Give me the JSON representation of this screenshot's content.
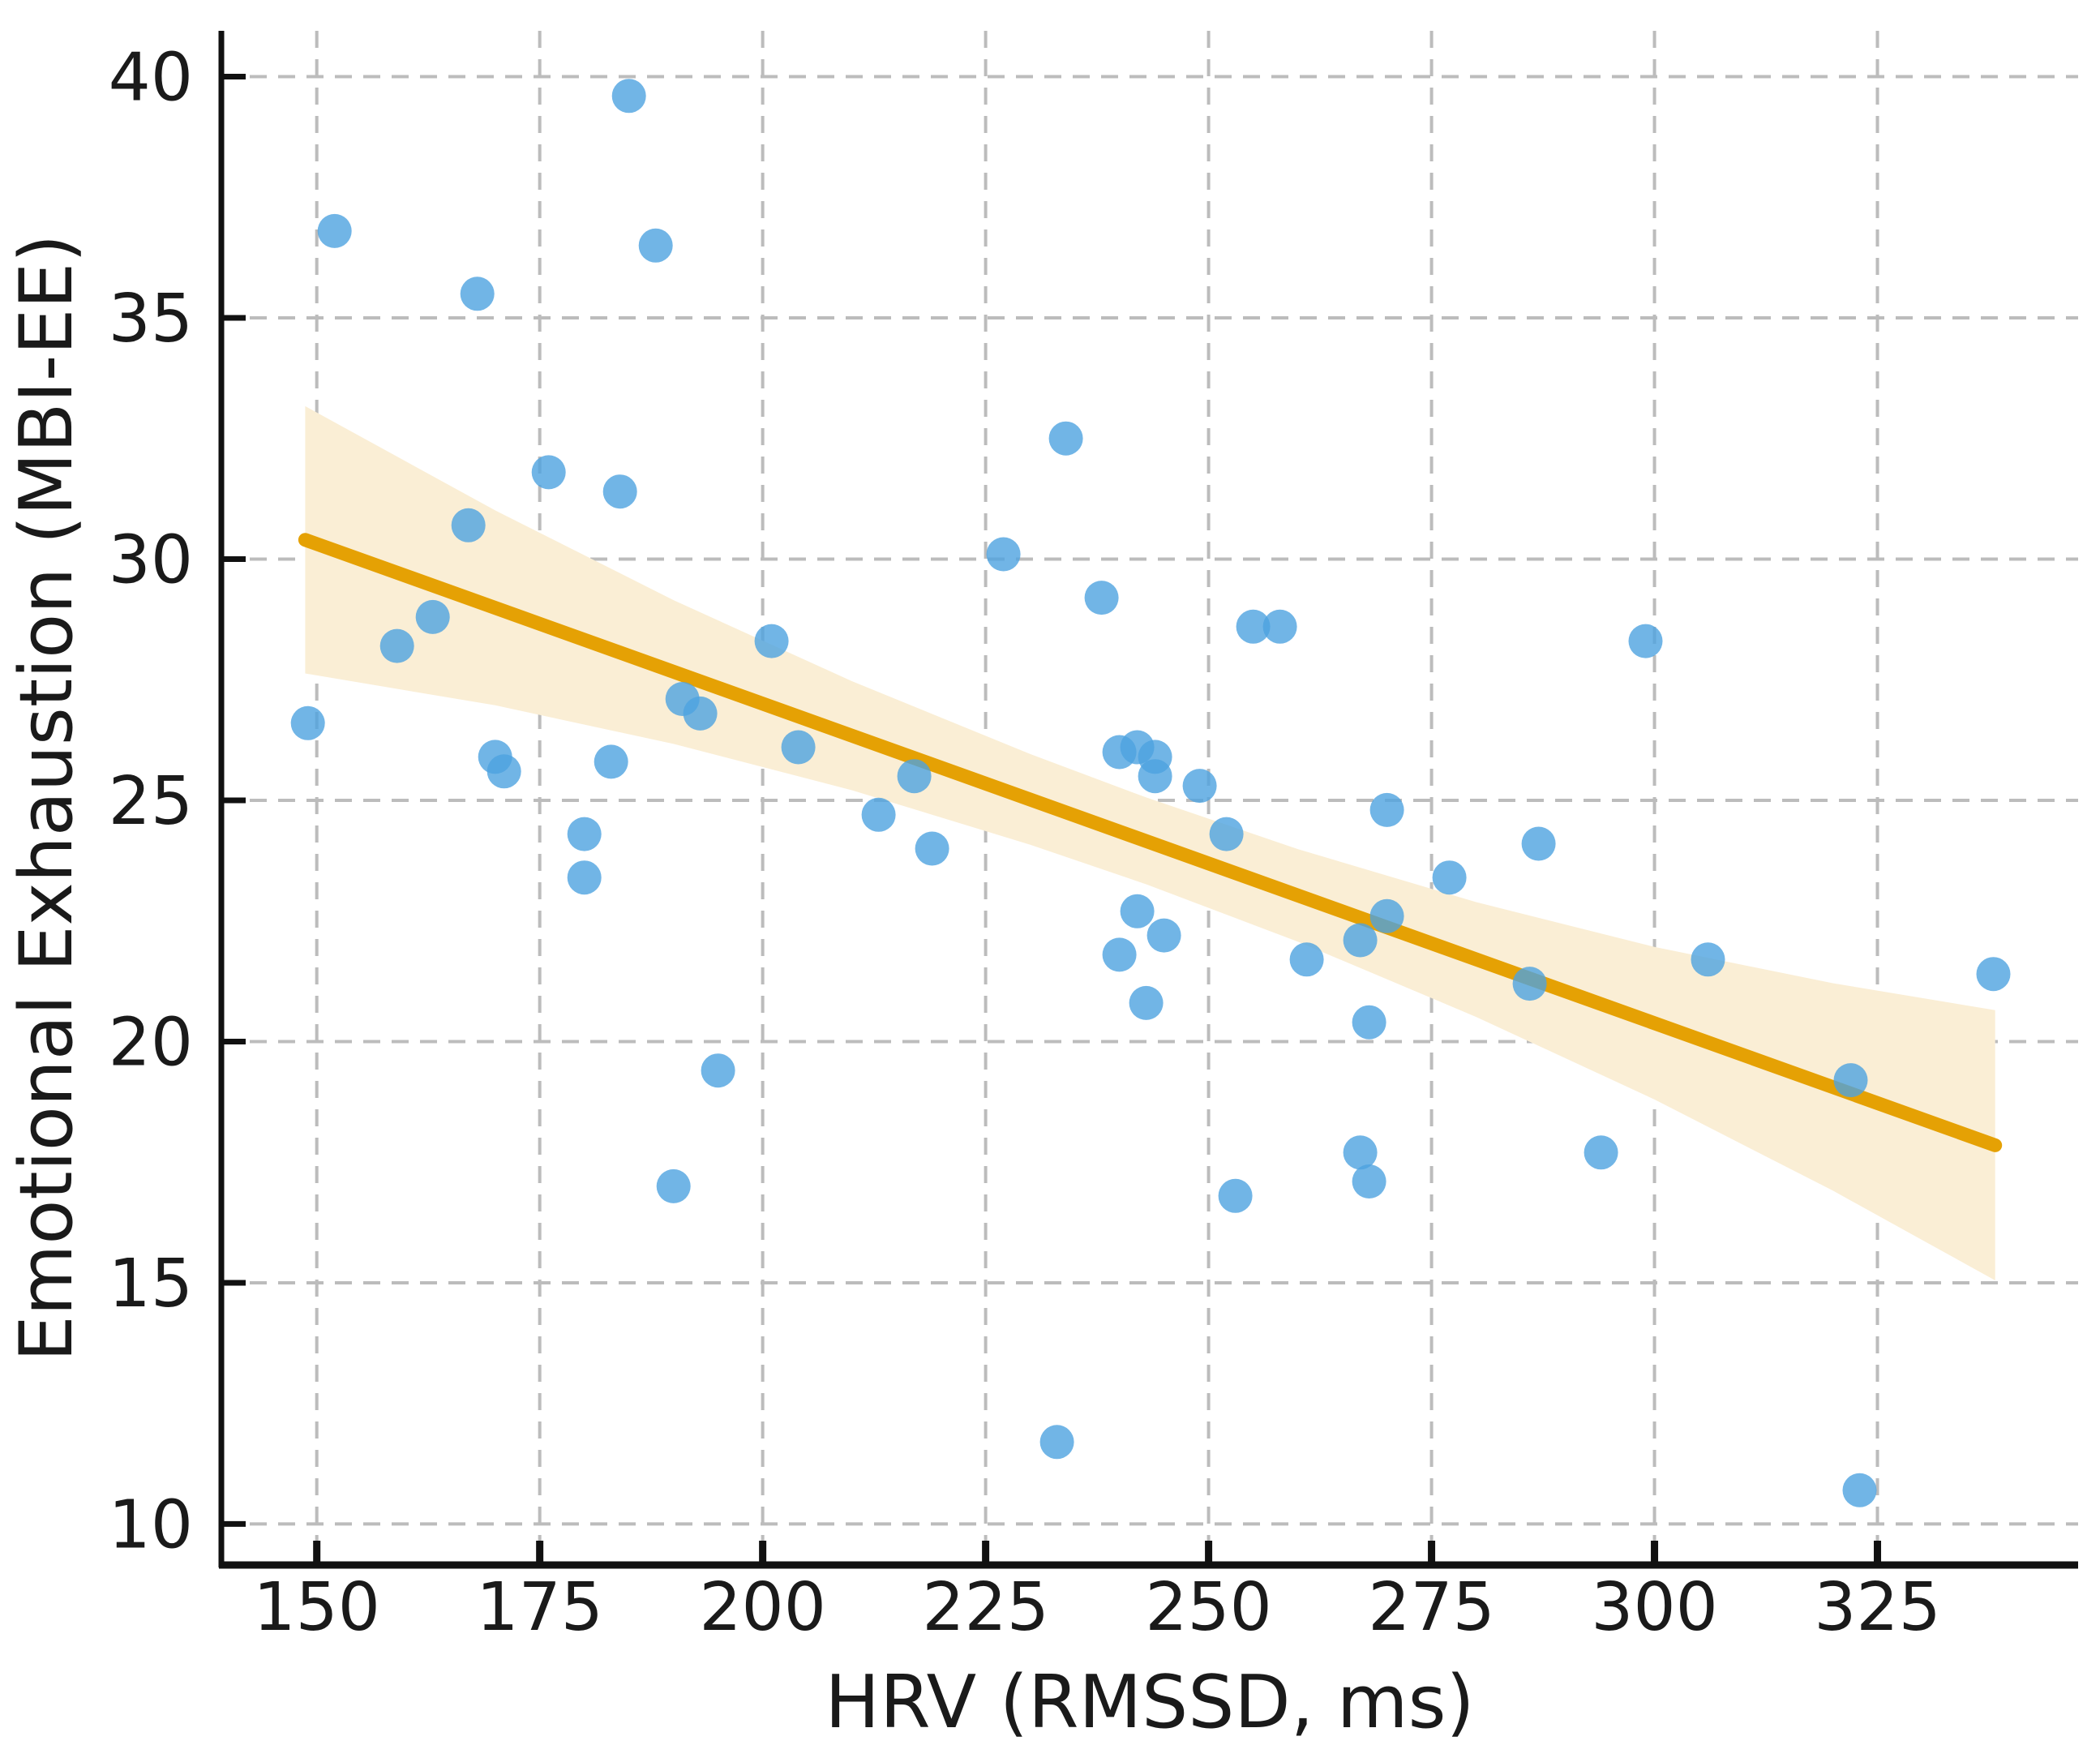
{
  "chart_data": {
    "type": "scatter",
    "title": "",
    "xlabel": "HRV (RMSSD, ms)",
    "ylabel": "Emotional Exhaustion (MBI-EE)",
    "x_ticks": [
      150,
      175,
      200,
      225,
      250,
      275,
      300,
      325
    ],
    "y_ticks": [
      10,
      15,
      20,
      25,
      30,
      35,
      40
    ],
    "xlim": [
      139.3,
      347.5
    ],
    "ylim": [
      9.15,
      40.95
    ],
    "grid": true,
    "grid_style": "dashed",
    "legend": "none",
    "points": [
      [
        149,
        26.6
      ],
      [
        152,
        36.8
      ],
      [
        159,
        28.2
      ],
      [
        163,
        28.8
      ],
      [
        167,
        30.7
      ],
      [
        168,
        35.5
      ],
      [
        170,
        25.9
      ],
      [
        171,
        25.6
      ],
      [
        176,
        31.8
      ],
      [
        180,
        24.3
      ],
      [
        180,
        23.4
      ],
      [
        183,
        25.8
      ],
      [
        184,
        31.4
      ],
      [
        185,
        39.6
      ],
      [
        188,
        36.5
      ],
      [
        190,
        17.0
      ],
      [
        191,
        27.1
      ],
      [
        193,
        26.8
      ],
      [
        195,
        19.4
      ],
      [
        201,
        28.3
      ],
      [
        204,
        26.1
      ],
      [
        213,
        24.7
      ],
      [
        217,
        25.5
      ],
      [
        219,
        24.0
      ],
      [
        227,
        30.1
      ],
      [
        233,
        11.7
      ],
      [
        234,
        32.5
      ],
      [
        238,
        29.2
      ],
      [
        240,
        26.0
      ],
      [
        240,
        21.8
      ],
      [
        242,
        26.1
      ],
      [
        242,
        22.7
      ],
      [
        243,
        20.8
      ],
      [
        244,
        25.9
      ],
      [
        244,
        25.5
      ],
      [
        245,
        22.2
      ],
      [
        249,
        25.3
      ],
      [
        252,
        24.3
      ],
      [
        253,
        16.8
      ],
      [
        255,
        28.6
      ],
      [
        258,
        28.6
      ],
      [
        261,
        21.7
      ],
      [
        267,
        22.1
      ],
      [
        267,
        17.7
      ],
      [
        268,
        17.1
      ],
      [
        268,
        20.4
      ],
      [
        270,
        24.8
      ],
      [
        270,
        22.6
      ],
      [
        277,
        23.4
      ],
      [
        286,
        21.2
      ],
      [
        287,
        24.1
      ],
      [
        294,
        17.7
      ],
      [
        299,
        28.3
      ],
      [
        306,
        21.7
      ],
      [
        322,
        19.2
      ],
      [
        323,
        10.7
      ],
      [
        338,
        21.4
      ]
    ],
    "regression_line": {
      "x": [
        148.7,
        338.2
      ],
      "y": [
        30.4,
        17.85
      ]
    },
    "ci_band": {
      "upper": [
        [
          148.7,
          33.17
        ],
        [
          170,
          31.01
        ],
        [
          190,
          29.15
        ],
        [
          210,
          27.47
        ],
        [
          230,
          25.96
        ],
        [
          243,
          25.06
        ],
        [
          260,
          23.99
        ],
        [
          280,
          22.89
        ],
        [
          300,
          21.96
        ],
        [
          320,
          21.21
        ],
        [
          338.2,
          20.65
        ]
      ],
      "lower": [
        [
          148.7,
          27.63
        ],
        [
          170,
          26.97
        ],
        [
          190,
          26.17
        ],
        [
          210,
          25.21
        ],
        [
          230,
          24.08
        ],
        [
          243,
          23.26
        ],
        [
          260,
          22.07
        ],
        [
          280,
          20.51
        ],
        [
          300,
          18.8
        ],
        [
          320,
          16.91
        ],
        [
          338.2,
          15.05
        ]
      ]
    },
    "colors": {
      "point": "#4da3e0",
      "point_opacity": 0.8,
      "line": "#e5a104",
      "band": "#faeed5",
      "grid": "#bcbcbc",
      "axis": "#111111",
      "text": "#1a1a1a"
    }
  }
}
